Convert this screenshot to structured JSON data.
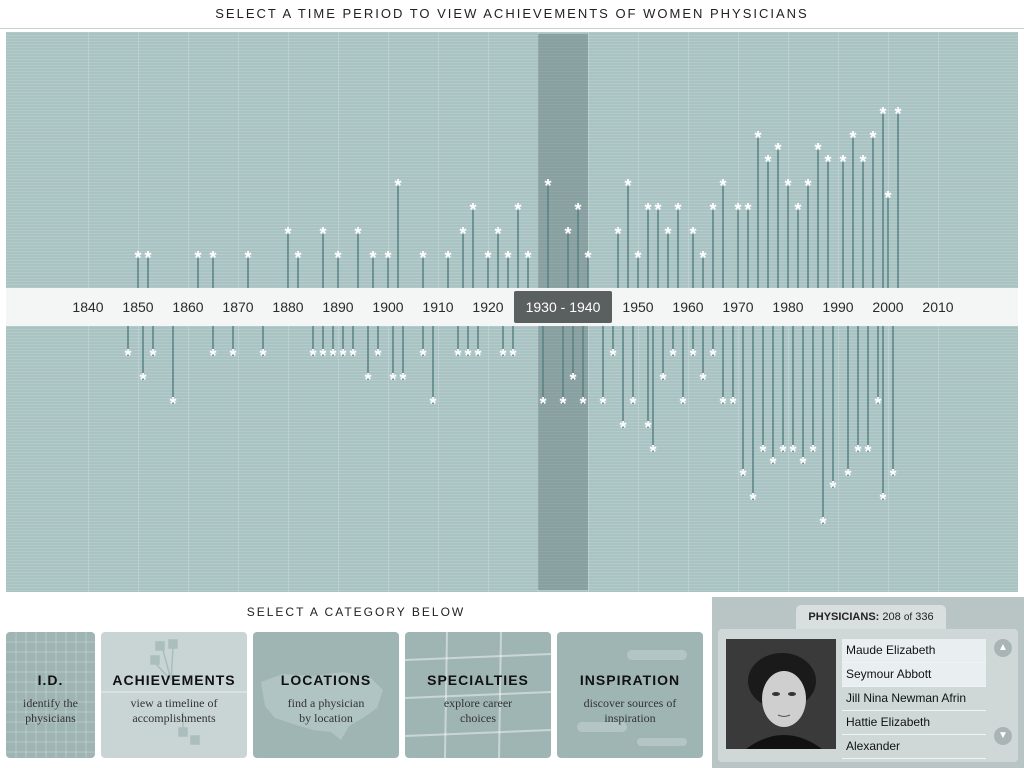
{
  "header": {
    "title": "SELECT A TIME PERIOD TO VIEW ACHIEVEMENTS OF WOMEN PHYSICIANS"
  },
  "timeline": {
    "years": [
      "1840",
      "1850",
      "1860",
      "1870",
      "1880",
      "1890",
      "1900",
      "1910",
      "1920",
      "1930",
      "1940",
      "1950",
      "1960",
      "1970",
      "1980",
      "1990",
      "2000",
      "2010"
    ],
    "selected_start": "1930",
    "selected_sep": "-",
    "selected_end": "1940",
    "achievements": {
      "above": [
        [
          1850,
          1
        ],
        [
          1852,
          1
        ],
        [
          1862,
          1
        ],
        [
          1865,
          1
        ],
        [
          1872,
          1
        ],
        [
          1880,
          2
        ],
        [
          1882,
          1
        ],
        [
          1887,
          2
        ],
        [
          1890,
          1
        ],
        [
          1894,
          2
        ],
        [
          1897,
          1
        ],
        [
          1900,
          1
        ],
        [
          1902,
          4
        ],
        [
          1907,
          1
        ],
        [
          1912,
          1
        ],
        [
          1915,
          2
        ],
        [
          1917,
          3
        ],
        [
          1920,
          1
        ],
        [
          1922,
          2
        ],
        [
          1924,
          1
        ],
        [
          1926,
          3
        ],
        [
          1928,
          1
        ],
        [
          1932,
          4
        ],
        [
          1936,
          2
        ],
        [
          1938,
          3
        ],
        [
          1940,
          1
        ],
        [
          1946,
          2
        ],
        [
          1948,
          4
        ],
        [
          1950,
          1
        ],
        [
          1952,
          3
        ],
        [
          1954,
          3
        ],
        [
          1956,
          2
        ],
        [
          1958,
          3
        ],
        [
          1961,
          2
        ],
        [
          1963,
          1
        ],
        [
          1965,
          3
        ],
        [
          1967,
          4
        ],
        [
          1970,
          3
        ],
        [
          1972,
          3
        ],
        [
          1974,
          6
        ],
        [
          1976,
          5
        ],
        [
          1978,
          5.5
        ],
        [
          1980,
          4
        ],
        [
          1982,
          3
        ],
        [
          1984,
          4
        ],
        [
          1986,
          5.5
        ],
        [
          1988,
          5
        ],
        [
          1991,
          5
        ],
        [
          1993,
          6
        ],
        [
          1995,
          5
        ],
        [
          1997,
          6
        ],
        [
          1999,
          7
        ],
        [
          2000,
          3.5
        ],
        [
          2002,
          7
        ]
      ],
      "below": [
        [
          1848,
          1
        ],
        [
          1851,
          2
        ],
        [
          1853,
          1
        ],
        [
          1857,
          3
        ],
        [
          1865,
          1
        ],
        [
          1869,
          1
        ],
        [
          1875,
          1
        ],
        [
          1885,
          1
        ],
        [
          1887,
          1
        ],
        [
          1889,
          1
        ],
        [
          1891,
          1
        ],
        [
          1893,
          1
        ],
        [
          1896,
          2
        ],
        [
          1898,
          1
        ],
        [
          1901,
          2
        ],
        [
          1903,
          2
        ],
        [
          1907,
          1
        ],
        [
          1909,
          3
        ],
        [
          1914,
          1
        ],
        [
          1916,
          1
        ],
        [
          1918,
          1
        ],
        [
          1923,
          1
        ],
        [
          1925,
          1
        ],
        [
          1931,
          3
        ],
        [
          1935,
          3
        ],
        [
          1937,
          2
        ],
        [
          1939,
          3
        ],
        [
          1943,
          3
        ],
        [
          1945,
          1
        ],
        [
          1947,
          4
        ],
        [
          1949,
          3
        ],
        [
          1952,
          4
        ],
        [
          1953,
          5
        ],
        [
          1955,
          2
        ],
        [
          1957,
          1
        ],
        [
          1959,
          3
        ],
        [
          1961,
          1
        ],
        [
          1963,
          2
        ],
        [
          1965,
          1
        ],
        [
          1967,
          3
        ],
        [
          1969,
          3
        ],
        [
          1971,
          6
        ],
        [
          1973,
          7
        ],
        [
          1975,
          5
        ],
        [
          1977,
          5.5
        ],
        [
          1979,
          5
        ],
        [
          1981,
          5
        ],
        [
          1983,
          5.5
        ],
        [
          1985,
          5
        ],
        [
          1987,
          8
        ],
        [
          1989,
          6.5
        ],
        [
          1992,
          6
        ],
        [
          1994,
          5
        ],
        [
          1996,
          5
        ],
        [
          1998,
          3
        ],
        [
          1999,
          7
        ],
        [
          2001,
          6
        ]
      ]
    }
  },
  "categories": {
    "title": "SELECT A CATEGORY BELOW",
    "items": [
      {
        "title": "I.D.",
        "subtitle_1": "identify the",
        "subtitle_2": "physicians",
        "color": "#9fb5b4"
      },
      {
        "title": "ACHIEVEMENTS",
        "subtitle_1": "view a timeline of",
        "subtitle_2": "accomplishments",
        "color": "#c9d5d4"
      },
      {
        "title": "LOCATIONS",
        "subtitle_1": "find a physician",
        "subtitle_2": "by location",
        "color": "#9fb5b4"
      },
      {
        "title": "SPECIALTIES",
        "subtitle_1": "explore career",
        "subtitle_2": "choices",
        "color": "#9fb5b4"
      },
      {
        "title": "INSPIRATION",
        "subtitle_1": "discover sources of",
        "subtitle_2": "inspiration",
        "color": "#9fb5b4"
      }
    ]
  },
  "physicians": {
    "label": "PHYSICIANS:",
    "count": "208",
    "of": "of",
    "total": "336",
    "list": [
      "Maude Elizabeth",
      "Seymour Abbott",
      "Jill Nina Newman Afrin",
      "Hattie Elizabeth",
      "Alexander"
    ]
  },
  "icons": {
    "scroll_up": "chevron-up-icon",
    "scroll_down": "chevron-down-icon",
    "marker": "asterisk-icon"
  },
  "colors": {
    "timeline_bg": "#a9c3c2",
    "marker": "#ffffff",
    "selected_pill": "#5a5f60",
    "stem": "#5a8284"
  }
}
